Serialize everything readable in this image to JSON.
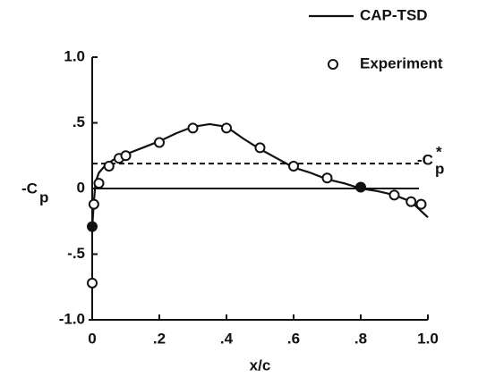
{
  "chart_data": {
    "type": "line",
    "x_label": "x/c",
    "y_label": {
      "text": "-C",
      "subscript": "p"
    },
    "xlim": [
      0,
      1.0
    ],
    "ylim": [
      -1.0,
      1.0
    ],
    "xticks": [
      0,
      {
        "value": 0.2,
        "label": ".2"
      },
      {
        "value": 0.4,
        "label": ".4"
      },
      {
        "value": 0.6,
        "label": ".6"
      },
      {
        "value": 0.8,
        "label": ".8"
      },
      {
        "value": 1.0,
        "label": "1.0"
      }
    ],
    "yticks": [
      {
        "value": 1.0,
        "label": "1.0"
      },
      {
        "value": 0.5,
        "label": ".5"
      },
      0,
      {
        "value": -0.5,
        "label": "-.5"
      },
      {
        "value": -1.0,
        "label": "-1.0"
      }
    ],
    "series": [
      {
        "name": "CAP-TSD",
        "kind": "line",
        "color": "#111",
        "x": [
          0,
          0.005,
          0.01,
          0.02,
          0.04,
          0.07,
          0.1,
          0.15,
          0.2,
          0.25,
          0.3,
          0.35,
          0.4,
          0.45,
          0.5,
          0.55,
          0.6,
          0.65,
          0.7,
          0.75,
          0.8,
          0.85,
          0.9,
          0.95,
          1.0
        ],
        "values": [
          -0.3,
          -0.1,
          0.05,
          0.12,
          0.18,
          0.23,
          0.26,
          0.31,
          0.36,
          0.42,
          0.47,
          0.49,
          0.47,
          0.38,
          0.3,
          0.23,
          0.16,
          0.12,
          0.07,
          0.04,
          0.0,
          -0.02,
          -0.05,
          -0.1,
          -0.22
        ]
      },
      {
        "name": "Experiment",
        "kind": "scatter",
        "color": "#111",
        "x": [
          0,
          0,
          0.005,
          0.02,
          0.05,
          0.08,
          0.1,
          0.2,
          0.3,
          0.4,
          0.5,
          0.6,
          0.7,
          0.8,
          0.9,
          0.95,
          0.98
        ],
        "values": [
          -0.72,
          -0.29,
          -0.12,
          0.04,
          0.17,
          0.23,
          0.25,
          0.35,
          0.46,
          0.46,
          0.31,
          0.17,
          0.08,
          0.01,
          -0.05,
          -0.1,
          -0.12
        ],
        "filled": [
          false,
          true,
          false,
          false,
          false,
          false,
          false,
          false,
          false,
          false,
          false,
          false,
          false,
          true,
          false,
          false,
          false
        ]
      }
    ],
    "reference_lines": [
      {
        "value": 0.19,
        "style": "dashed",
        "label": {
          "text": "-C",
          "subscript": "p",
          "superscript": "*"
        }
      },
      {
        "value": 0,
        "style": "solid"
      }
    ]
  }
}
